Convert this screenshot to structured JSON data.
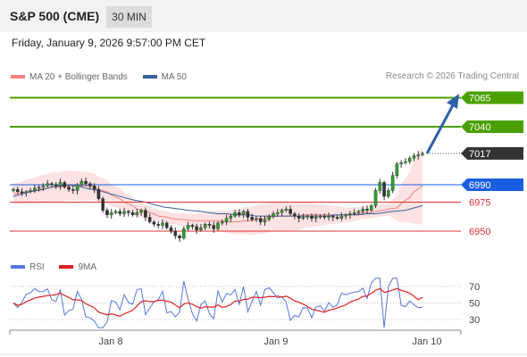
{
  "header": {
    "title": "S&P 500 (CME)",
    "timeframe": "30 MIN"
  },
  "datetime": "Friday, January 9, 2026 9:57:00 PM CET",
  "legend": {
    "ma20": {
      "label": "MA 20 + Bollinger Bands",
      "color": "#f08080"
    },
    "ma50": {
      "label": "MA 50",
      "color": "#3a5fa0"
    }
  },
  "credit": "Research © 2026 Trading Central",
  "levels": [
    {
      "value": 7065,
      "label": "7065",
      "color": "#4aa000",
      "style": "tag"
    },
    {
      "value": 7040,
      "label": "7040",
      "color": "#4aa000",
      "style": "tag"
    },
    {
      "value": 7017,
      "label": "7017",
      "color": "#333333",
      "style": "tag-dotted"
    },
    {
      "value": 6990,
      "label": "6990",
      "color": "#1a5fe0",
      "style": "tag"
    },
    {
      "value": 6975,
      "label": "6975",
      "color": "#e03030",
      "style": "text"
    },
    {
      "value": 6950,
      "label": "6950",
      "color": "#e03030",
      "style": "text"
    }
  ],
  "rsi": {
    "legend": [
      {
        "label": "RSI",
        "color": "#5577dd"
      },
      {
        "label": "9MA",
        "color": "#e02020"
      }
    ],
    "levels": [
      "70",
      "50",
      "30"
    ]
  },
  "x_axis": {
    "labels": [
      "Jan 8",
      "Jan 9",
      "Jan 10"
    ]
  },
  "chart_data": {
    "type": "candlestick",
    "price_range_visible": [
      6940,
      7075
    ],
    "close_series": [
      6986,
      6984,
      6983,
      6984,
      6985,
      6987,
      6988,
      6989,
      6991,
      6990,
      6989,
      6992,
      6988,
      6986,
      6985,
      6990,
      6993,
      6991,
      6989,
      6986,
      6978,
      6968,
      6964,
      6966,
      6967,
      6965,
      6967,
      6966,
      6964,
      6966,
      6968,
      6962,
      6958,
      6956,
      6955,
      6957,
      6953,
      6950,
      6946,
      6944,
      6952,
      6955,
      6954,
      6951,
      6953,
      6956,
      6955,
      6952,
      6957,
      6958,
      6961,
      6963,
      6966,
      6964,
      6967,
      6962,
      6960,
      6961,
      6958,
      6960,
      6963,
      6965,
      6966,
      6968,
      6969,
      6965,
      6963,
      6961,
      6962,
      6963,
      6961,
      6962,
      6963,
      6962,
      6963,
      6962,
      6961,
      6963,
      6964,
      6965,
      6966,
      6967,
      6969,
      6968,
      6972,
      6985,
      6992,
      6980,
      6985,
      6998,
      7008,
      7009,
      7010,
      7013,
      7015,
      7016,
      7017
    ],
    "ma20_series": [
      6982,
      6983,
      6984,
      6985,
      6986,
      6987,
      6988,
      6988,
      6989,
      6989,
      6989,
      6989,
      6988,
      6986,
      6984,
      6981,
      6978,
      6975,
      6972,
      6969,
      6967,
      6965,
      6963,
      6962,
      6961,
      6960,
      6960,
      6959,
      6959,
      6959,
      6959,
      6959,
      6958,
      6958,
      6958,
      6959,
      6959,
      6960,
      6961,
      6962,
      6963,
      6963,
      6963,
      6963,
      6964,
      6964,
      6964,
      6964,
      6964,
      6964,
      6964,
      6964,
      6965,
      6966,
      6966,
      6967,
      6968,
      6969,
      6970,
      6974,
      6979,
      6984,
      6989
    ],
    "ma50_series": [
      6980,
      6982,
      6984,
      6986,
      6988,
      6989,
      6990,
      6989,
      6987,
      6985,
      6983,
      6981,
      6979,
      6977,
      6975,
      6973,
      6971,
      6970,
      6969,
      6968,
      6967,
      6966,
      6965,
      6965,
      6964,
      6964,
      6963,
      6963,
      6963,
      6963,
      6963,
      6963,
      6963,
      6963,
      6963,
      6964,
      6964,
      6964,
      6965,
      6965,
      6966,
      6967,
      6968,
      6970,
      6972
    ]
  }
}
